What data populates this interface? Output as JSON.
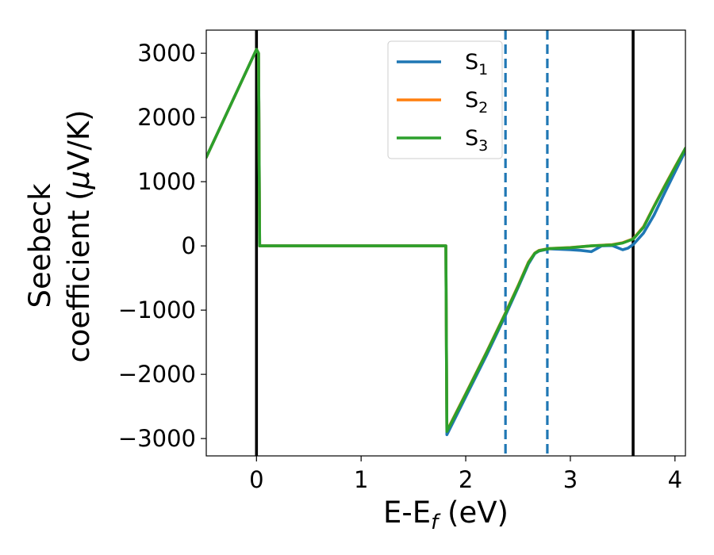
{
  "chart_data": {
    "type": "line",
    "xlabel": {
      "main": "E-E",
      "sub": "f",
      "unit": " (eV)"
    },
    "ylabel": {
      "line1": "Seebeck",
      "line2_prefix": "coefficient  (",
      "mu": "μ",
      "line2_suffix": "V/K)"
    },
    "xlim": [
      -0.48,
      4.1
    ],
    "ylim": [
      -3270,
      3360
    ],
    "xticks": [
      {
        "value": 0,
        "label": "0"
      },
      {
        "value": 1,
        "label": "1"
      },
      {
        "value": 2,
        "label": "2"
      },
      {
        "value": 3,
        "label": "3"
      },
      {
        "value": 4,
        "label": "4"
      }
    ],
    "yticks": [
      {
        "value": 3000,
        "label": "3000"
      },
      {
        "value": 2000,
        "label": "2000"
      },
      {
        "value": 1000,
        "label": "1000"
      },
      {
        "value": 0,
        "label": "0"
      },
      {
        "value": -1000,
        "label": "−1000"
      },
      {
        "value": -2000,
        "label": "−2000"
      },
      {
        "value": -3000,
        "label": "−3000"
      }
    ],
    "grid": false,
    "legend_position": "top-center",
    "vertical_lines": [
      {
        "x": 0,
        "style": "solid",
        "color": "#000000"
      },
      {
        "x": 3.6,
        "style": "solid",
        "color": "#000000"
      },
      {
        "x": 2.38,
        "style": "dashed",
        "color": "#1f77b4"
      },
      {
        "x": 2.78,
        "style": "dashed",
        "color": "#1f77b4"
      }
    ],
    "series": [
      {
        "name": "S",
        "sub": "1",
        "color": "#1f77b4",
        "x": [
          -0.48,
          0.0,
          0.02,
          0.03,
          1.8,
          1.81,
          1.82,
          2.0,
          2.2,
          2.38,
          2.5,
          2.6,
          2.66,
          2.7,
          2.8,
          3.0,
          3.1,
          3.2,
          3.3,
          3.4,
          3.5,
          3.55,
          3.6,
          3.7,
          3.8,
          3.9,
          4.0,
          4.1
        ],
        "y": [
          1380,
          3060,
          3000,
          0,
          0,
          0,
          -2940,
          -2350,
          -1700,
          -1080,
          -650,
          -280,
          -120,
          -80,
          -45,
          -60,
          -70,
          -90,
          0,
          5,
          -60,
          -35,
          20,
          200,
          480,
          820,
          1150,
          1480
        ]
      },
      {
        "name": "S",
        "sub": "2",
        "color": "#ff7f0e",
        "x": [
          -0.48,
          0.0,
          0.02,
          0.03,
          1.8,
          1.81,
          1.82,
          2.0,
          2.2,
          2.38,
          2.5,
          2.6,
          2.66,
          2.7,
          2.8,
          3.0,
          3.2,
          3.3,
          3.4,
          3.5,
          3.6,
          3.7,
          3.8,
          3.9,
          4.0,
          4.1
        ],
        "y": [
          1380,
          3060,
          3000,
          0,
          0,
          0,
          -2880,
          -2300,
          -1650,
          -1040,
          -620,
          -250,
          -110,
          -70,
          -40,
          -25,
          0,
          10,
          20,
          50,
          110,
          300,
          620,
          930,
          1230,
          1520
        ]
      },
      {
        "name": "S",
        "sub": "3",
        "color": "#2ca02c",
        "x": [
          -0.48,
          0.0,
          0.02,
          0.03,
          1.8,
          1.81,
          1.82,
          2.0,
          2.2,
          2.38,
          2.5,
          2.6,
          2.66,
          2.7,
          2.8,
          3.0,
          3.2,
          3.3,
          3.4,
          3.5,
          3.6,
          3.7,
          3.8,
          3.9,
          4.0,
          4.1
        ],
        "y": [
          1380,
          3060,
          3000,
          0,
          0,
          0,
          -2890,
          -2310,
          -1660,
          -1050,
          -630,
          -260,
          -115,
          -75,
          -42,
          -28,
          0,
          8,
          15,
          45,
          105,
          290,
          610,
          920,
          1220,
          1520
        ]
      }
    ]
  }
}
